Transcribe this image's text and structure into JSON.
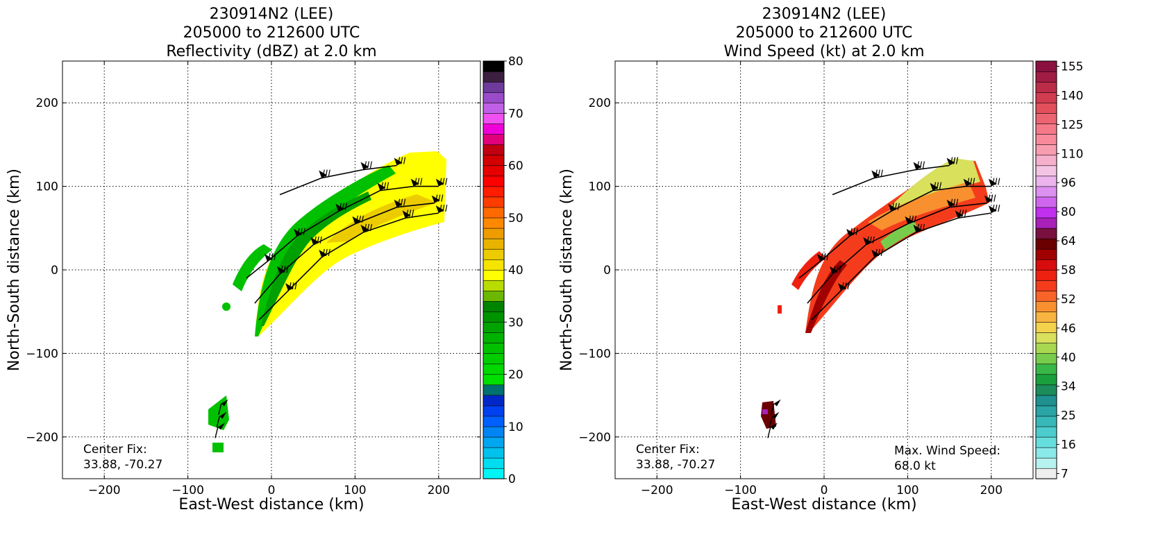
{
  "chart_data": [
    {
      "type": "heatmap",
      "title_lines": [
        "230914N2 (LEE)",
        "205000 to 212600 UTC",
        "Reflectivity (dBZ) at 2.0 km"
      ],
      "xlabel": "East-West distance (km)",
      "ylabel": "North-South distance (km)",
      "xlim": [
        -250,
        250
      ],
      "ylim": [
        -250,
        250
      ],
      "xticks": [
        -200,
        -100,
        0,
        100,
        200
      ],
      "yticks": [
        -200,
        -100,
        0,
        100,
        200
      ],
      "grid": true,
      "center_fix_label": "Center Fix:",
      "center_fix_value": "33.88, -70.27",
      "colorbar": {
        "min": 0,
        "max": 80,
        "tick_labels": [
          0,
          10,
          20,
          30,
          40,
          50,
          60,
          70,
          80
        ],
        "colors": [
          "#00f5f5",
          "#00dcf0",
          "#00c2ec",
          "#00a6f0",
          "#0085f4",
          "#0060ff",
          "#0040ee",
          "#0028c8",
          "#007070",
          "#00e000",
          "#00d800",
          "#00cc00",
          "#00c000",
          "#00b200",
          "#00a300",
          "#009300",
          "#008400",
          "#6cb800",
          "#b8dc00",
          "#ffff00",
          "#f5e400",
          "#eccc00",
          "#e9b400",
          "#ee9c00",
          "#ff8800",
          "#ff6a00",
          "#ff3c00",
          "#ff1c00",
          "#ff0000",
          "#e60000",
          "#d20000",
          "#c00010",
          "#e0007a",
          "#f000d8",
          "#f050f0",
          "#c060e6",
          "#9a4cc8",
          "#6e3a9c",
          "#3c2040",
          "#000000"
        ]
      }
    },
    {
      "type": "heatmap",
      "title_lines": [
        "230914N2 (LEE)",
        "205000 to 212600 UTC",
        "Wind Speed (kt) at 2.0 km"
      ],
      "xlabel": "East-West distance (km)",
      "ylabel": "North-South distance (km)",
      "xlim": [
        -250,
        250
      ],
      "ylim": [
        -250,
        250
      ],
      "xticks": [
        -200,
        -100,
        0,
        100,
        200
      ],
      "yticks": [
        -200,
        -100,
        0,
        100,
        200
      ],
      "grid": true,
      "center_fix_label": "Center Fix:",
      "center_fix_value": "33.88, -70.27",
      "max_wind_label": "Max. Wind Speed:",
      "max_wind_value": "68.0 kt",
      "colorbar": {
        "tick_labels": [
          7,
          16,
          25,
          34,
          40,
          46,
          52,
          58,
          64,
          80,
          96,
          110,
          125,
          140,
          155
        ],
        "colors": [
          "#eeeeee",
          "#b6f2ee",
          "#8aeaea",
          "#66dede",
          "#4ccccc",
          "#38b8b8",
          "#2aa4a4",
          "#1e9090",
          "#1c8c5c",
          "#19a03c",
          "#38b848",
          "#78cc4c",
          "#a8d850",
          "#d8e05c",
          "#f4d24c",
          "#f8b440",
          "#f89030",
          "#f86428",
          "#f43c1c",
          "#ee2010",
          "#d80c0c",
          "#a00000",
          "#6a0000",
          "#7a1040",
          "#a820b8",
          "#c030ee",
          "#d066f0",
          "#dc90f0",
          "#ecb4ec",
          "#f4c4e4",
          "#f6b0cc",
          "#f89cb0",
          "#f88a9c",
          "#f47a8a",
          "#ec6472",
          "#e2505c",
          "#d23c50",
          "#bc2c48",
          "#a01c44",
          "#8a1040"
        ]
      }
    }
  ]
}
